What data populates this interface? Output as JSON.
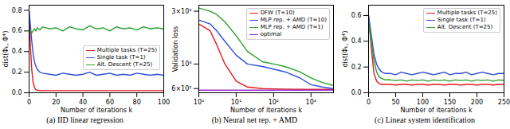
{
  "chart_data": [
    {
      "type": "line",
      "title": "(a) IID linear regression",
      "x_label": "Number of iterations k",
      "y_label": "dist(Φₖ, Φ*)",
      "xlim": [
        0,
        100
      ],
      "xticks": [
        0,
        20,
        40,
        60,
        80,
        100
      ],
      "ylim": [
        0,
        0.85
      ],
      "yticks": [
        {
          "value": 0,
          "label": "0.0"
        },
        0.2,
        0.4,
        0.6,
        0.8
      ],
      "legend": "center right",
      "grid": false,
      "x": [
        0,
        1,
        2,
        3,
        4,
        5,
        6,
        8,
        10,
        15,
        20,
        25,
        30,
        35,
        40,
        45,
        50,
        55,
        60,
        65,
        70,
        75,
        80,
        85,
        90,
        95,
        100
      ],
      "series": [
        {
          "name": "Multiple tasks (T=25)",
          "color": "#e41a1c",
          "values": [
            0.78,
            0.45,
            0.22,
            0.1,
            0.05,
            0.03,
            0.025,
            0.02,
            0.02,
            0.02,
            0.02,
            0.02,
            0.02,
            0.02,
            0.02,
            0.02,
            0.02,
            0.02,
            0.02,
            0.02,
            0.02,
            0.02,
            0.02,
            0.02,
            0.02,
            0.02,
            0.02
          ]
        },
        {
          "name": "Single task (T=1)",
          "color": "#2f4fd8",
          "values": [
            0.8,
            0.65,
            0.5,
            0.38,
            0.3,
            0.26,
            0.23,
            0.2,
            0.19,
            0.18,
            0.17,
            0.19,
            0.18,
            0.17,
            0.18,
            0.2,
            0.17,
            0.18,
            0.19,
            0.17,
            0.18,
            0.17,
            0.19,
            0.18,
            0.17,
            0.18,
            0.17
          ]
        },
        {
          "name": "Alt. Descent (T=25)",
          "color": "#2ca02c",
          "values": [
            0.62,
            0.6,
            0.58,
            0.6,
            0.62,
            0.6,
            0.63,
            0.61,
            0.64,
            0.62,
            0.63,
            0.6,
            0.64,
            0.62,
            0.61,
            0.65,
            0.62,
            0.63,
            0.6,
            0.64,
            0.62,
            0.63,
            0.61,
            0.64,
            0.62,
            0.63,
            0.62
          ]
        }
      ]
    },
    {
      "type": "line",
      "title": "(b) Neural net rep. + AMD",
      "x_label": "Number of iterations k",
      "y_label": "Validation loss",
      "log": true,
      "xlim": [
        1,
        4000
      ],
      "xticks": [
        {
          "value": 1,
          "label": "10⁰"
        },
        {
          "value": 10,
          "label": "10¹"
        },
        {
          "value": 100,
          "label": "10²"
        },
        {
          "value": 1000,
          "label": "10³"
        }
      ],
      "ylim": [
        550,
        3400
      ],
      "yticks": [
        {
          "value": 600,
          "label": "6×10²"
        },
        {
          "value": 1000,
          "label": "10³"
        },
        {
          "value": 3000,
          "label": "3×10³"
        }
      ],
      "legend": "upper right",
      "grid": false,
      "x": [
        1,
        2,
        3,
        5,
        10,
        20,
        50,
        100,
        200,
        500,
        1000,
        2000,
        4000
      ],
      "series": [
        {
          "name": "DFW (T=10)",
          "color": "#e41a1c",
          "values": [
            2300,
            2000,
            1500,
            1000,
            700,
            620,
            600,
            595,
            592,
            590,
            590,
            590,
            590
          ]
        },
        {
          "name": "MLP rep. + AMD (T=10)",
          "color": "#2f4fd8",
          "values": [
            2500,
            2300,
            2000,
            1600,
            1200,
            1000,
            950,
            900,
            850,
            750,
            650,
            620,
            600
          ]
        },
        {
          "name": "MLP rep. + AMD (T=1)",
          "color": "#2ca02c",
          "values": [
            3200,
            3000,
            2800,
            2400,
            1800,
            1300,
            1050,
            1000,
            950,
            850,
            750,
            680,
            640
          ]
        },
        {
          "name": "optimal",
          "color": "#9b30d0",
          "values": [
            580,
            580,
            580,
            580,
            580,
            580,
            580,
            580,
            580,
            580,
            580,
            580,
            580
          ]
        }
      ]
    },
    {
      "type": "line",
      "title": "(c) Linear system identification",
      "x_label": "Number of iterations k",
      "y_label": "dist(Φₖ, Φ*)",
      "xlim": [
        0,
        250
      ],
      "xticks": [
        0,
        50,
        100,
        150,
        200,
        250
      ],
      "ylim": [
        0,
        0.68
      ],
      "yticks": [
        {
          "value": 0,
          "label": "0.0"
        },
        0.2,
        0.4,
        0.6
      ],
      "legend": "upper right",
      "grid": false,
      "x": [
        0,
        5,
        10,
        15,
        20,
        25,
        30,
        40,
        50,
        60,
        70,
        80,
        90,
        100,
        110,
        120,
        130,
        140,
        150,
        160,
        170,
        180,
        190,
        200,
        210,
        220,
        230,
        240,
        250
      ],
      "series": [
        {
          "name": "Multiple tasks (T=25)",
          "color": "#e41a1c",
          "values": [
            0.6,
            0.35,
            0.15,
            0.09,
            0.07,
            0.065,
            0.065,
            0.065,
            0.06,
            0.065,
            0.065,
            0.06,
            0.065,
            0.065,
            0.06,
            0.065,
            0.065,
            0.06,
            0.065,
            0.065,
            0.06,
            0.065,
            0.065,
            0.06,
            0.065,
            0.065,
            0.06,
            0.065,
            0.065
          ]
        },
        {
          "name": "Single task (T=1)",
          "color": "#2f4fd8",
          "values": [
            0.6,
            0.45,
            0.3,
            0.22,
            0.18,
            0.16,
            0.15,
            0.15,
            0.14,
            0.16,
            0.15,
            0.14,
            0.15,
            0.16,
            0.15,
            0.14,
            0.15,
            0.16,
            0.14,
            0.15,
            0.15,
            0.16,
            0.14,
            0.15,
            0.16,
            0.15,
            0.14,
            0.15,
            0.15
          ]
        },
        {
          "name": "Alt. Descent (T=25)",
          "color": "#2ca02c",
          "values": [
            0.55,
            0.4,
            0.25,
            0.16,
            0.12,
            0.11,
            0.1,
            0.1,
            0.095,
            0.1,
            0.09,
            0.1,
            0.095,
            0.1,
            0.09,
            0.1,
            0.095,
            0.1,
            0.09,
            0.1,
            0.095,
            0.1,
            0.09,
            0.1,
            0.095,
            0.1,
            0.09,
            0.1,
            0.095
          ]
        }
      ]
    }
  ]
}
